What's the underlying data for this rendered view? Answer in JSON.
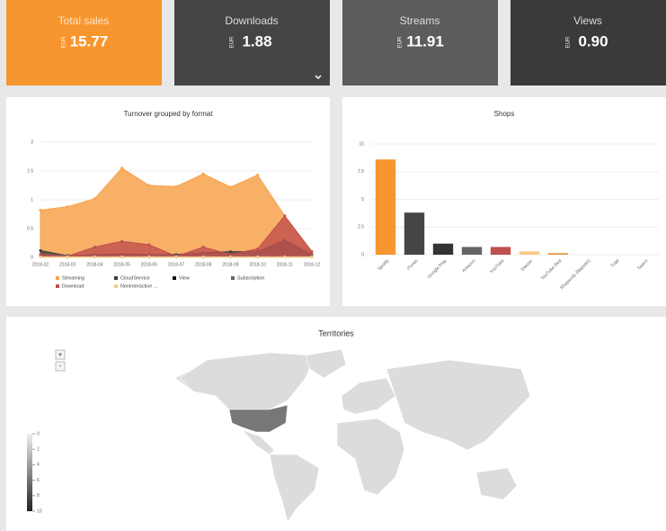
{
  "cards": [
    {
      "title": "Total sales",
      "currency": "EUR",
      "value": "15.77",
      "color": "#f7962f"
    },
    {
      "title": "Downloads",
      "currency": "EUR",
      "value": "1.88",
      "color": "#454545"
    },
    {
      "title": "Streams",
      "currency": "EUR",
      "value": "11.91",
      "color": "#5c5c5c"
    },
    {
      "title": "Views",
      "currency": "EUR",
      "value": "0.90",
      "color": "#3a3a3a"
    }
  ],
  "chart_data": [
    {
      "type": "area",
      "title": "Turnover grouped by format",
      "categories": [
        "2018-02",
        "2018-03",
        "2018-04",
        "2018-05",
        "2018-06",
        "2018-07",
        "2018-08",
        "2018-09",
        "2018-10",
        "2018-11",
        "2018-12"
      ],
      "ylim": [
        0,
        2
      ],
      "yticks": [
        0,
        0.5,
        1,
        1.5,
        2
      ],
      "grid": true,
      "series": [
        {
          "name": "Streaming",
          "color": "#f7a24c",
          "values": [
            0.82,
            0.88,
            1.02,
            1.55,
            1.25,
            1.23,
            1.45,
            1.22,
            1.43,
            0.72,
            0.1
          ]
        },
        {
          "name": "CloudService",
          "color": "#3d3d3d",
          "values": [
            0.12,
            0.03,
            0.05,
            0.06,
            0.05,
            0.05,
            0.08,
            0.1,
            0.1,
            0.3,
            0.05
          ]
        },
        {
          "name": "View",
          "color": "#111111",
          "values": [
            0.02,
            0.01,
            0.01,
            0.01,
            0.01,
            0.01,
            0.01,
            0.01,
            0.01,
            0.02,
            0.01
          ]
        },
        {
          "name": "Subscription",
          "color": "#666666",
          "values": [
            0.05,
            0.04,
            0.04,
            0.04,
            0.04,
            0.04,
            0.05,
            0.05,
            0.05,
            0.05,
            0.02
          ]
        },
        {
          "name": "Download",
          "color": "#c0504d",
          "values": [
            0.05,
            0.02,
            0.18,
            0.28,
            0.22,
            0.02,
            0.18,
            0.05,
            0.15,
            0.72,
            0.1
          ]
        },
        {
          "name": "Noninteractive ...",
          "color": "#f9c98a",
          "values": [
            0.01,
            0.01,
            0.01,
            0.01,
            0.01,
            0.01,
            0.01,
            0.01,
            0.01,
            0.01,
            0.01
          ]
        }
      ]
    },
    {
      "type": "bar",
      "title": "Shops",
      "categories": [
        "Spotify",
        "iTunes",
        "Google Play",
        "Amazon",
        "YouTube",
        "Deezer",
        "YouTube Red",
        "Rhapsody (Napster)",
        "Tidal",
        "Saavn"
      ],
      "values": [
        8.6,
        3.8,
        1.0,
        0.7,
        0.7,
        0.3,
        0.15,
        0,
        0,
        0
      ],
      "colors": [
        "#f7962f",
        "#454545",
        "#333333",
        "#666666",
        "#c0504d",
        "#f9c98a",
        "#e89a45",
        "#999999",
        "#999999",
        "#999999"
      ],
      "ylim": [
        0,
        10
      ],
      "yticks": [
        0,
        2.5,
        5,
        7.5,
        10
      ],
      "grid": true
    }
  ],
  "map": {
    "title": "Territories",
    "zoom_in": "+",
    "zoom_out": "-",
    "legend_ticks": [
      0,
      2,
      4,
      6,
      8,
      10
    ]
  }
}
